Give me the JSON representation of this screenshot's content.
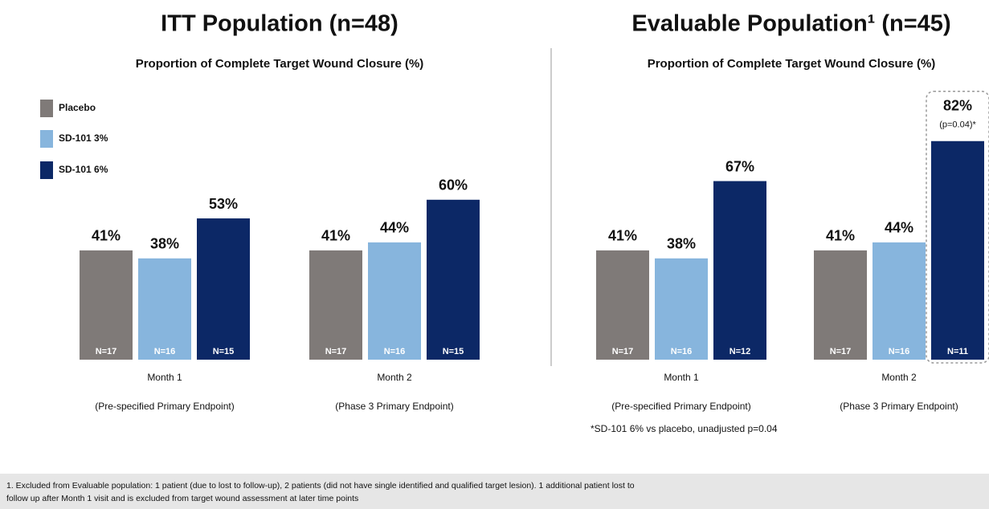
{
  "chart_data": [
    {
      "type": "bar",
      "title": "ITT Population (n=48)",
      "subtitle": "Proportion of Complete Target Wound Closure (%)",
      "categories": [
        "Month 1",
        "Month 2"
      ],
      "category_notes": [
        "(Pre-specified Primary Endpoint)",
        "(Phase 3 Primary Endpoint)"
      ],
      "legend": "upper left",
      "series": [
        {
          "name": "Placebo",
          "color": "#7f7a78",
          "values": [
            41,
            41
          ],
          "value_labels": [
            "41%",
            "41%"
          ],
          "n_labels": [
            "N=17",
            "N=17"
          ]
        },
        {
          "name": "SD-101 3%",
          "color": "#87b5dd",
          "values": [
            38,
            44
          ],
          "value_labels": [
            "38%",
            "44%"
          ],
          "n_labels": [
            "N=16",
            "N=16"
          ]
        },
        {
          "name": "SD-101 6%",
          "color": "#0c2866",
          "values": [
            53,
            60
          ],
          "value_labels": [
            "53%",
            "60%"
          ],
          "n_labels": [
            "N=15",
            "N=15"
          ]
        }
      ]
    },
    {
      "type": "bar",
      "title": "Evaluable Population¹ (n=45)",
      "subtitle": "Proportion of Complete Target Wound Closure (%)",
      "categories": [
        "Month 1",
        "Month 2"
      ],
      "category_notes": [
        "(Pre-specified Primary Endpoint)",
        "(Phase 3 Primary Endpoint)"
      ],
      "annotation": "*SD-101 6% vs placebo, unadjusted p=0.04",
      "series": [
        {
          "name": "Placebo",
          "color": "#7f7a78",
          "values": [
            41,
            41
          ],
          "value_labels": [
            "41%",
            "41%"
          ],
          "n_labels": [
            "N=17",
            "N=17"
          ]
        },
        {
          "name": "SD-101 3%",
          "color": "#87b5dd",
          "values": [
            38,
            44
          ],
          "value_labels": [
            "38%",
            "44%"
          ],
          "n_labels": [
            "N=16",
            "N=16"
          ]
        },
        {
          "name": "SD-101 6%",
          "color": "#0c2866",
          "values": [
            67,
            82
          ],
          "value_labels": [
            "67%",
            "82%"
          ],
          "n_labels": [
            "N=12",
            "N=11"
          ],
          "value_notes": [
            null,
            "(p=0.04)*"
          ]
        }
      ]
    }
  ],
  "footnote": [
    "1. Excluded from Evaluable population: 1 patient (due to lost to follow-up), 2 patients (did not have single identified and qualified target lesion). 1 additional patient lost to",
    "follow up after Month 1 visit and is excluded from target wound assessment at later time points"
  ]
}
